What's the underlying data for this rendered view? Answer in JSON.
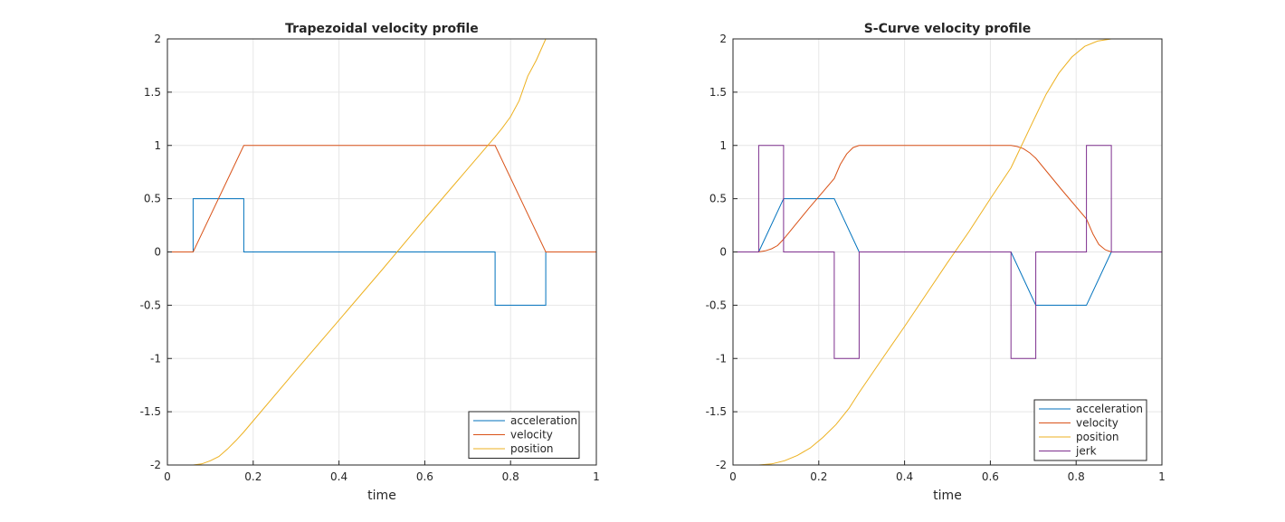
{
  "chart_data": [
    {
      "type": "line",
      "title": "Trapezoidal velocity profile",
      "xlabel": "time",
      "ylabel": "",
      "xlim": [
        0,
        1
      ],
      "ylim": [
        -2,
        2
      ],
      "xticks": [
        0,
        0.2,
        0.4,
        0.6,
        0.8,
        1
      ],
      "xtick_labels": [
        "0",
        "0.2",
        "0.4",
        "0.6",
        "0.8",
        "1"
      ],
      "yticks": [
        -2,
        -1.5,
        -1,
        -0.5,
        0,
        0.5,
        1,
        1.5,
        2
      ],
      "ytick_labels": [
        "-2",
        "-1.5",
        "-1",
        "-0.5",
        "0",
        "0.5",
        "1",
        "1.5",
        "2"
      ],
      "grid": true,
      "legend_position": "bottom-right",
      "series": [
        {
          "name": "acceleration",
          "color": "#0072BD",
          "x": [
            0,
            0.06,
            0.06,
            0.178,
            0.178,
            0.764,
            0.764,
            0.882,
            0.882,
            1
          ],
          "y": [
            0,
            0,
            0.5,
            0.5,
            0,
            0,
            -0.5,
            -0.5,
            0,
            0
          ]
        },
        {
          "name": "velocity",
          "color": "#D95319",
          "x": [
            0,
            0.06,
            0.178,
            0.764,
            0.882,
            1
          ],
          "y": [
            0,
            0,
            1,
            1,
            0,
            0
          ]
        },
        {
          "name": "position",
          "color": "#EDB120",
          "x": [
            0,
            0.06,
            0.08,
            0.1,
            0.12,
            0.14,
            0.16,
            0.178,
            0.3,
            0.4,
            0.5,
            0.6,
            0.7,
            0.764,
            0.78,
            0.8,
            0.82,
            0.84,
            0.86,
            0.882,
            1
          ],
          "y": [
            -2,
            -2,
            -1.99,
            -1.96,
            -1.92,
            -1.85,
            -1.77,
            -1.69,
            -1.11,
            -0.64,
            -0.17,
            0.31,
            0.78,
            1.08,
            1.16,
            1.27,
            1.42,
            1.65,
            1.8,
            2,
            2
          ]
        }
      ]
    },
    {
      "type": "line",
      "title": "S-Curve velocity profile",
      "xlabel": "time",
      "ylabel": "",
      "xlim": [
        0,
        1
      ],
      "ylim": [
        -2,
        2
      ],
      "xticks": [
        0,
        0.2,
        0.4,
        0.6,
        0.8,
        1
      ],
      "xtick_labels": [
        "0",
        "0.2",
        "0.4",
        "0.6",
        "0.8",
        "1"
      ],
      "yticks": [
        -2,
        -1.5,
        -1,
        -0.5,
        0,
        0.5,
        1,
        1.5,
        2
      ],
      "ytick_labels": [
        "-2",
        "-1.5",
        "-1",
        "-0.5",
        "0",
        "0.5",
        "1",
        "1.5",
        "2"
      ],
      "grid": true,
      "legend_position": "bottom-right",
      "series": [
        {
          "name": "acceleration",
          "color": "#0072BD",
          "x": [
            0,
            0.06,
            0.118,
            0.236,
            0.294,
            0.648,
            0.706,
            0.824,
            0.882,
            1
          ],
          "y": [
            0,
            0,
            0.5,
            0.5,
            0,
            0,
            -0.5,
            -0.5,
            0,
            0
          ]
        },
        {
          "name": "velocity",
          "color": "#D95319",
          "x": [
            0,
            0.06,
            0.075,
            0.09,
            0.104,
            0.118,
            0.177,
            0.236,
            0.25,
            0.265,
            0.28,
            0.294,
            0.648,
            0.662,
            0.677,
            0.692,
            0.706,
            0.765,
            0.824,
            0.839,
            0.853,
            0.868,
            0.882,
            1
          ],
          "y": [
            0,
            0,
            0.01,
            0.03,
            0.06,
            0.12,
            0.41,
            0.69,
            0.82,
            0.92,
            0.98,
            1,
            1,
            0.99,
            0.97,
            0.93,
            0.88,
            0.59,
            0.31,
            0.17,
            0.07,
            0.02,
            0,
            0
          ]
        },
        {
          "name": "position",
          "color": "#EDB120",
          "x": [
            0,
            0.06,
            0.09,
            0.12,
            0.15,
            0.18,
            0.21,
            0.24,
            0.27,
            0.294,
            0.35,
            0.4,
            0.45,
            0.5,
            0.55,
            0.6,
            0.648,
            0.7,
            0.73,
            0.76,
            0.79,
            0.82,
            0.85,
            0.882,
            1
          ],
          "y": [
            -2,
            -2,
            -1.99,
            -1.96,
            -1.91,
            -1.84,
            -1.74,
            -1.62,
            -1.47,
            -1.32,
            -0.99,
            -0.7,
            -0.4,
            -0.1,
            0.19,
            0.5,
            0.79,
            1.23,
            1.48,
            1.68,
            1.83,
            1.93,
            1.98,
            2,
            2
          ]
        },
        {
          "name": "jerk",
          "color": "#7E2F8E",
          "x": [
            0,
            0.06,
            0.06,
            0.118,
            0.118,
            0.236,
            0.236,
            0.294,
            0.294,
            0.648,
            0.648,
            0.706,
            0.706,
            0.824,
            0.824,
            0.882,
            0.882,
            1
          ],
          "y": [
            0,
            0,
            1,
            1,
            0,
            0,
            -1,
            -1,
            0,
            0,
            -1,
            -1,
            0,
            0,
            1,
            1,
            0,
            0
          ]
        }
      ]
    }
  ]
}
